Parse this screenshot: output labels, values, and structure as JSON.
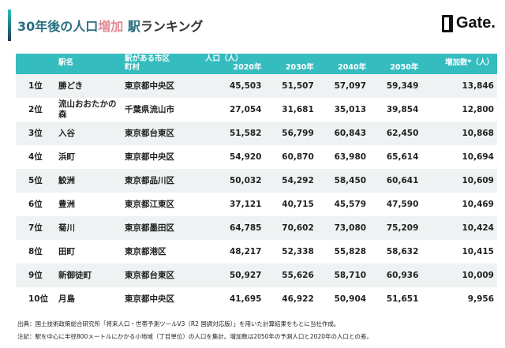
{
  "title": {
    "part1": "30年後の人口",
    "part2": "増加",
    "part3": " 駅",
    "part4": "ランキング"
  },
  "logo": "Gate.",
  "header": {
    "station": "駅名",
    "city": "駅がある市区町村",
    "population": "人口（人）",
    "y2020": "2020年",
    "y2030": "2030年",
    "y2040": "2040年",
    "y2050": "2050年",
    "increase": "増加数*（人）"
  },
  "rows": [
    {
      "rank": "1位",
      "station": "勝どき",
      "city": "東京都中央区",
      "y2020": "45,503",
      "y2030": "51,507",
      "y2040": "57,097",
      "y2050": "59,349",
      "increase": "13,846"
    },
    {
      "rank": "2位",
      "station": "流山おおたかの森",
      "city": "千葉県流山市",
      "y2020": "27,054",
      "y2030": "31,681",
      "y2040": "35,013",
      "y2050": "39,854",
      "increase": "12,800"
    },
    {
      "rank": "3位",
      "station": "入谷",
      "city": "東京都台東区",
      "y2020": "51,582",
      "y2030": "56,799",
      "y2040": "60,843",
      "y2050": "62,450",
      "increase": "10,868"
    },
    {
      "rank": "4位",
      "station": "浜町",
      "city": "東京都中央区",
      "y2020": "54,920",
      "y2030": "60,870",
      "y2040": "63,980",
      "y2050": "65,614",
      "increase": "10,694"
    },
    {
      "rank": "5位",
      "station": "鮫洲",
      "city": "東京都品川区",
      "y2020": "50,032",
      "y2030": "54,292",
      "y2040": "58,450",
      "y2050": "60,641",
      "increase": "10,609"
    },
    {
      "rank": "6位",
      "station": "豊洲",
      "city": "東京都江東区",
      "y2020": "37,121",
      "y2030": "40,715",
      "y2040": "45,579",
      "y2050": "47,590",
      "increase": "10,469"
    },
    {
      "rank": "7位",
      "station": "菊川",
      "city": "東京都墨田区",
      "y2020": "64,785",
      "y2030": "70,602",
      "y2040": "73,080",
      "y2050": "75,209",
      "increase": "10,424"
    },
    {
      "rank": "8位",
      "station": "田町",
      "city": "東京都港区",
      "y2020": "48,217",
      "y2030": "52,338",
      "y2040": "55,828",
      "y2050": "58,632",
      "increase": "10,415"
    },
    {
      "rank": "9位",
      "station": "新御徒町",
      "city": "東京都台東区",
      "y2020": "50,927",
      "y2030": "55,626",
      "y2040": "58,710",
      "y2050": "60,936",
      "increase": "10,009"
    },
    {
      "rank": "10位",
      "station": "月島",
      "city": "東京都中央区",
      "y2020": "41,695",
      "y2030": "46,922",
      "y2040": "50,904",
      "y2050": "51,651",
      "increase": "9,956"
    }
  ],
  "notes": {
    "source": "出典：国土技術政策総合研究所「将来人口・世帯予測ツールV3（R2 国調対応版）」を用いた計算結果をもとに当社作成。",
    "note": "注記：駅を中心に半径800メートルにかかる小地域（丁目単位）の人口を集計。増加数は2050年の予測人口と2020年の人口との差。"
  }
}
